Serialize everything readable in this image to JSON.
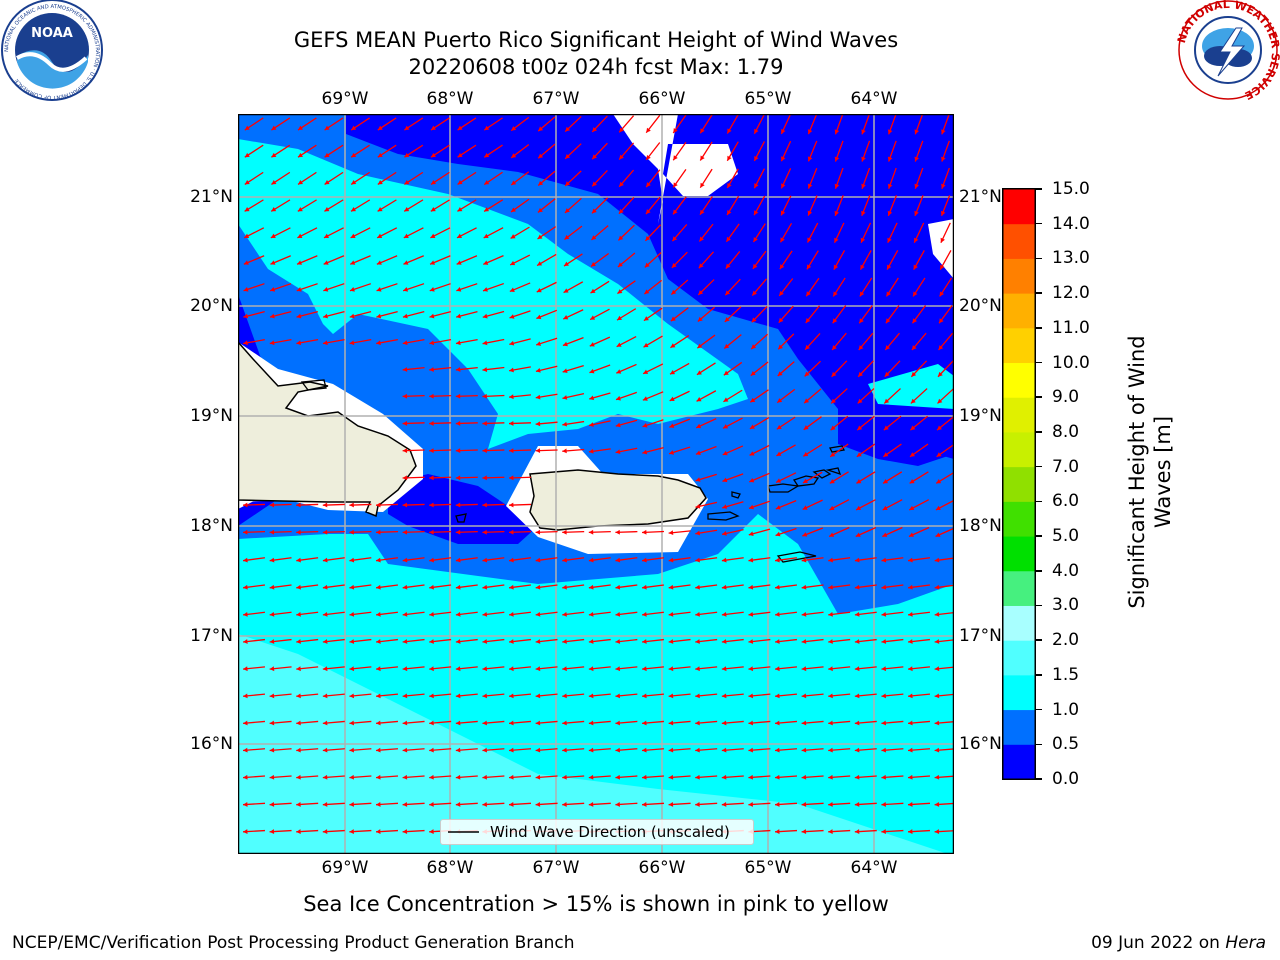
{
  "title_line1": "GEFS MEAN Puerto Rico Significant Height of Wind Waves",
  "title_line2": "20220608 t00z 024h fcst   Max: 1.79",
  "logos": {
    "left": {
      "name": "NOAA",
      "ring_text": "NATIONAL OCEANIC AND ATMOSPHERIC ADMINISTRATION · U.S. DEPARTMENT OF COMMERCE"
    },
    "right": {
      "name": "NATIONAL WEATHER SERVICE"
    }
  },
  "lon_labels": [
    "69°W",
    "68°W",
    "67°W",
    "66°W",
    "65°W",
    "64°W"
  ],
  "lat_labels": [
    "21°N",
    "20°N",
    "19°N",
    "18°N",
    "17°N",
    "16°N"
  ],
  "legend_label": "Wind Wave Direction (unscaled)",
  "colorbar": {
    "label_line1": "Significant Height of Wind",
    "label_line2": "Waves [m]",
    "ticks": [
      "15.0",
      "14.0",
      "13.0",
      "12.0",
      "11.0",
      "10.0",
      "9.0",
      "8.0",
      "7.0",
      "6.0",
      "5.0",
      "4.0",
      "3.0",
      "2.0",
      "1.5",
      "1.0",
      "0.5",
      "0.0"
    ],
    "levels": [
      0.0,
      0.5,
      1.0,
      1.5,
      2.0,
      3.0,
      4.0,
      5.0,
      6.0,
      7.0,
      8.0,
      9.0,
      10.0,
      11.0,
      12.0,
      13.0,
      14.0,
      15.0
    ],
    "colors": [
      "#0000ff",
      "#0070ff",
      "#00ffff",
      "#50ffff",
      "#a8ffff",
      "#46f07f",
      "#00e000",
      "#40e000",
      "#90e000",
      "#c8f000",
      "#e0f000",
      "#ffff00",
      "#ffd000",
      "#ffb000",
      "#ff8000",
      "#ff5000",
      "#ff0000"
    ]
  },
  "sea_ice_note": "Sea Ice Concentration > 15% is shown in pink to yellow",
  "footer_left": "NCEP/EMC/Verification Post Processing Product Generation Branch",
  "footer_right_prefix": "09 Jun 2022 on ",
  "footer_right_host": "Hera"
}
